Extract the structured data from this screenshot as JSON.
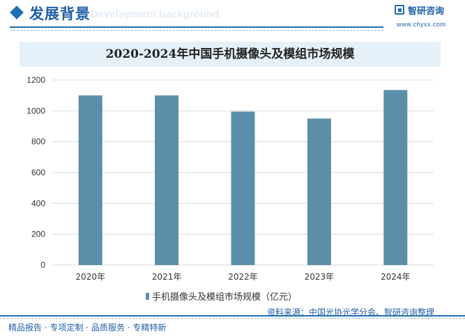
{
  "header": {
    "title": "发展背景",
    "subtitle": "Development background",
    "logo_name": "智研咨询",
    "logo_url": "www.chyxx.com"
  },
  "chart_data": {
    "type": "bar",
    "title": "2020-2024年中国手机摄像头及模组市场规模",
    "categories": [
      "2020年",
      "2021年",
      "2022年",
      "2023年",
      "2024年"
    ],
    "series": [
      {
        "name": "手机摄像头及模组市场规模（亿元）",
        "values": [
          1100,
          1100,
          995,
          950,
          1135
        ]
      }
    ],
    "ylim": [
      0,
      1200
    ],
    "yticks": [
      0,
      200,
      400,
      600,
      800,
      1000,
      1200
    ],
    "ytick_labels": [
      "0",
      "200",
      "400",
      "600",
      "800",
      "1000",
      "1200"
    ],
    "grid": true,
    "legend": "bottom",
    "bar_color": "#5b8ea8",
    "grid_color": "#d9d9d9"
  },
  "source": "资料来源：中国光协光学分会、智研咨询整理",
  "footer": "精品报告 · 专项定制 · 品质服务 · 专精特新"
}
